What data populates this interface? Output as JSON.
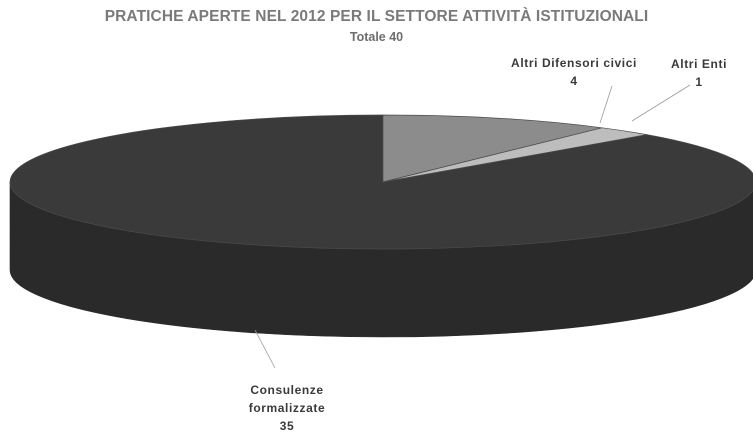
{
  "chart_data": {
    "type": "pie",
    "title": "PRATICHE APERTE NEL 2012 PER IL SETTORE ATTIVITÀ ISTITUZIONALI",
    "subtitle": "Totale 40",
    "categories": [
      "Consulenze formalizzate",
      "Altri Difensori civici",
      "Altri Enti"
    ],
    "values": [
      35,
      4,
      1
    ],
    "label_lines": [
      [
        "Consulenze",
        "formalizzate",
        "35"
      ],
      [
        "Altri Difensori civici",
        "4"
      ],
      [
        "Altri Enti",
        "1"
      ]
    ],
    "colors": [
      "#3a3a3a",
      "#8c8c8c",
      "#bdbdbd"
    ],
    "style": "3d-perspective",
    "legend": "none"
  }
}
